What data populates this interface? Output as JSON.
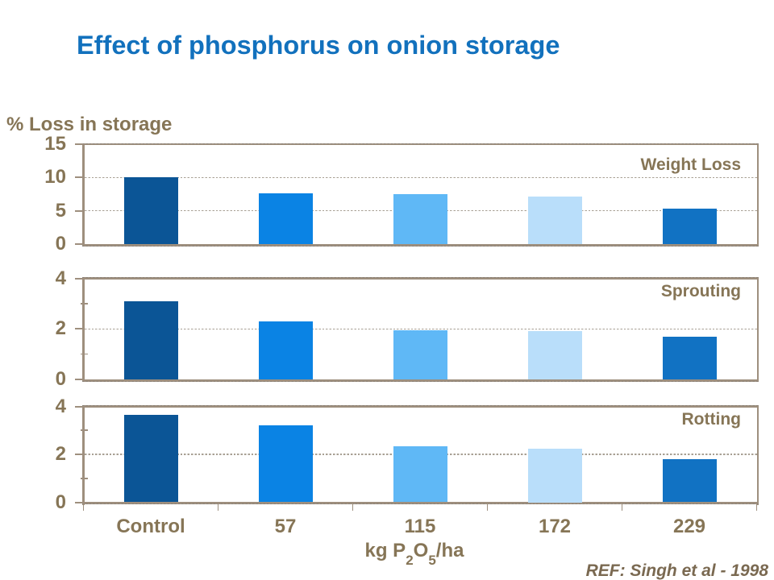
{
  "slide": {
    "title": "Effect of phosphorus on onion storage",
    "y_axis_title": "% Loss in storage",
    "x_axis_label_parts": {
      "pre": "kg P",
      "sub1": "2",
      "mid": "O",
      "sub2": "5",
      "post": "/ha"
    },
    "reference": "REF: Singh et al - 1998"
  },
  "colors": {
    "title_text": "#1271BD",
    "axis_text": "#867556",
    "reference_text": "#7A6951",
    "frame": "#9E8F7E",
    "gridline": "#A8A094",
    "border_dash": "#8A8177",
    "bars": [
      "#0B5596",
      "#0A83E4",
      "#5FB8F6",
      "#B9DEFA",
      "#1172C3"
    ]
  },
  "chart_data": {
    "type": "bar",
    "title": "Effect of phosphorus on onion storage",
    "xlabel": "kg P2O5/ha",
    "ylabel": "% Loss in storage",
    "categories": [
      "Control",
      "57",
      "115",
      "172",
      "229"
    ],
    "bar_colors": [
      "#0B5596",
      "#0A83E4",
      "#5FB8F6",
      "#B9DEFA",
      "#1172C3"
    ],
    "grid": "horizontal-dashed",
    "legend_position": "none",
    "annotation": "REF: Singh et al - 1998",
    "panels": [
      {
        "label": "Weight Loss",
        "ylim": [
          0,
          15
        ],
        "yticks": [
          0,
          5,
          10,
          15
        ],
        "values": [
          10.0,
          7.6,
          7.5,
          7.1,
          5.3
        ]
      },
      {
        "label": "Sprouting",
        "ylim": [
          0,
          4
        ],
        "yticks": [
          0,
          2,
          4
        ],
        "values": [
          3.1,
          2.3,
          1.95,
          1.9,
          1.7
        ]
      },
      {
        "label": "Rotting",
        "ylim": [
          0,
          4
        ],
        "yticks": [
          0,
          2,
          4
        ],
        "values": [
          3.65,
          3.2,
          2.35,
          2.25,
          1.8
        ]
      }
    ]
  }
}
